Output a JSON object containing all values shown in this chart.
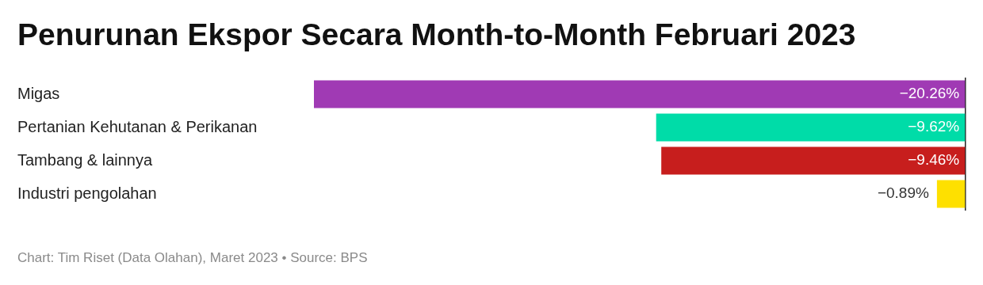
{
  "chart_data": {
    "type": "bar",
    "orientation": "horizontal",
    "title": "Penurunan Ekspor Secara Month-to-Month Februari 2023",
    "categories": [
      "Migas",
      "Pertanian Kehutanan & Perikanan",
      "Tambang & lainnya",
      "Industri pengolahan"
    ],
    "values": [
      -20.26,
      -9.62,
      -9.46,
      -0.89
    ],
    "colors": [
      "#a03ab4",
      "#00dca8",
      "#c71e1d",
      "#fee000"
    ],
    "value_labels": [
      "−20.26%",
      "−9.62%",
      "−9.46%",
      "−0.89%"
    ],
    "legend": false,
    "grid": false,
    "annotations": [
      "Chart: Tim Riset (Data Olahan), Maret 2023 • Source: BPS"
    ]
  }
}
